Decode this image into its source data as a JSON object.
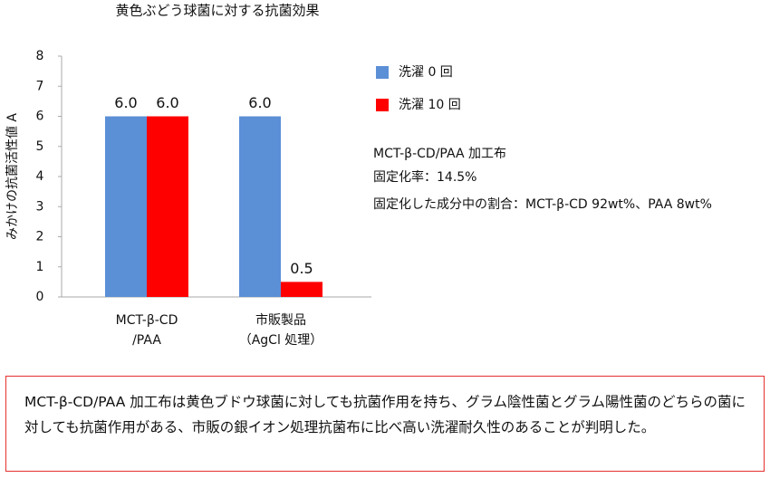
{
  "chart_data": {
    "type": "bar",
    "title": "黄色ぶどう球菌に対する抗菌効果",
    "y_label": "みかけの抗菌活性値 A",
    "categories": [
      [
        "MCT-β-CD",
        "/PAA"
      ],
      [
        "市販製品",
        "（AgCl 処理）"
      ]
    ],
    "series": [
      {
        "name": "洗濯 0 回",
        "color": "#5b8fd6",
        "values": [
          6,
          6
        ],
        "value_labels": [
          "6.0",
          "6.0"
        ]
      },
      {
        "name": "洗濯 10 回",
        "color": "#ff0000",
        "values": [
          6,
          0.5
        ],
        "value_labels": [
          "6.0",
          "0.5"
        ]
      }
    ],
    "ylim": [
      0,
      8
    ],
    "yticks": [
      0,
      1,
      2,
      3,
      4,
      5,
      6,
      7,
      8
    ],
    "grid": false,
    "annotations": [
      "MCT-β-CD/PAA 加工布",
      "固定化率：14.5%",
      "固定化した成分中の割合：MCT-β-CD 92wt%、PAA 8wt%"
    ]
  },
  "note": "MCT-β-CD/PAA 加工布は黄色ブドウ球菌に対しても抗菌作用を持ち、グラム陰性菌とグラム陽性菌のどちらの菌に対しても抗菌作用がある、市販の銀イオン処理抗菌布に比べ高い洗濯耐久性のあることが判明した。"
}
